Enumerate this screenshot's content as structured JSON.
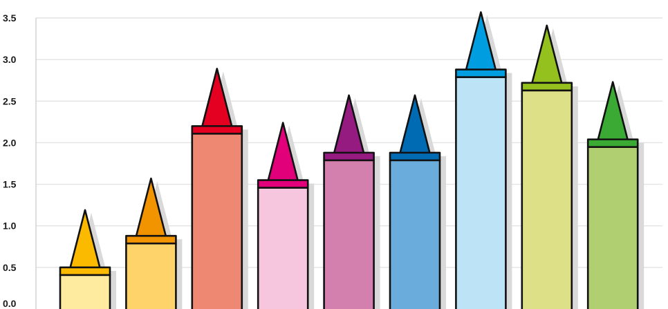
{
  "chart_data": {
    "type": "bar",
    "style": "crayon",
    "title": "",
    "xlabel": "",
    "ylabel": "",
    "ylim": [
      0,
      3.5
    ],
    "y_ticks": [
      "0.0",
      "0.5",
      "1.0",
      "1.5",
      "2.0",
      "2.5",
      "3.0",
      "3.5"
    ],
    "grid": true,
    "series": [
      {
        "values": [
          0.5,
          0.88,
          2.2,
          1.55,
          1.88,
          1.88,
          2.88,
          2.72,
          2.04
        ],
        "colors": [
          {
            "tip": "#FBBA00",
            "band": "#FBBA00",
            "body": "#FEEBA0"
          },
          {
            "tip": "#F29400",
            "band": "#F29400",
            "body": "#FED36A"
          },
          {
            "tip": "#E30020",
            "band": "#E30020",
            "body": "#EF8872"
          },
          {
            "tip": "#E2007A",
            "band": "#E2007A",
            "body": "#F5C6DD"
          },
          {
            "tip": "#951B81",
            "band": "#951B81",
            "body": "#D480AE"
          },
          {
            "tip": "#006AB3",
            "band": "#006AB3",
            "body": "#6AACDB"
          },
          {
            "tip": "#009EE0",
            "band": "#009EE0",
            "body": "#BCE3F6"
          },
          {
            "tip": "#95C11F",
            "band": "#95C11F",
            "body": "#DDE086"
          },
          {
            "tip": "#3AAA35",
            "band": "#3AAA35",
            "body": "#AFCF70"
          }
        ]
      }
    ]
  }
}
